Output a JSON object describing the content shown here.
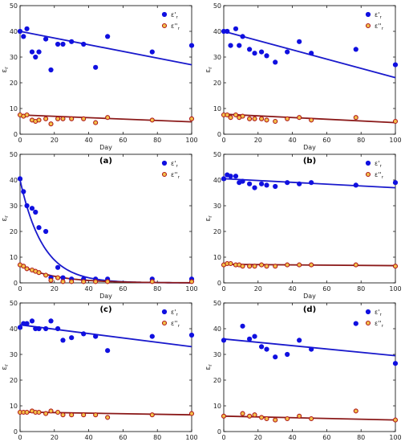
{
  "figure": {
    "panel_labels": [
      "(a)",
      "(b)",
      "(c)",
      "(d)",
      "(e)",
      "(f)"
    ],
    "colors": {
      "eps_prime_series": "#1010e0",
      "eps_double_series": "#b01818",
      "eps_double_fill": "#f2c24a",
      "eps_double_fit": "#8b1a1a",
      "eps_prime_fit": "#1a1acc"
    }
  },
  "chart_data": [
    {
      "type": "scatter",
      "panel": "(a)",
      "xlabel": "Day",
      "ylabel": "ε r",
      "xlim": [
        0,
        100
      ],
      "ylim": [
        0,
        50
      ],
      "xticks": [
        0,
        20,
        40,
        60,
        80,
        100
      ],
      "yticks": [
        0,
        10,
        20,
        30,
        40,
        50
      ],
      "legend": {
        "placement": "top-right",
        "entries": [
          "ε'r",
          "ε''r"
        ]
      },
      "series": [
        {
          "x": [
            0,
            2,
            4,
            7,
            9,
            11,
            15,
            18,
            22,
            25,
            30,
            37,
            44,
            51,
            77,
            100
          ],
          "y": [
            40,
            38,
            41,
            32,
            30,
            32,
            37,
            25,
            35,
            35,
            36,
            35,
            26,
            38,
            32,
            34.5
          ]
        },
        {
          "x": [
            0,
            2,
            4,
            7,
            9,
            11,
            15,
            18,
            22,
            25,
            30,
            37,
            44,
            51,
            77,
            100
          ],
          "y": [
            7.5,
            7,
            7.5,
            5.5,
            5,
            5.5,
            6,
            4,
            6,
            6,
            6,
            6,
            4.5,
            6.5,
            5.5,
            6
          ]
        }
      ],
      "fits": [
        {
          "type": "linear",
          "x": [
            0,
            100
          ],
          "y": [
            40,
            27
          ]
        },
        {
          "type": "linear",
          "x": [
            0,
            100
          ],
          "y": [
            7.5,
            4.8
          ]
        }
      ]
    },
    {
      "type": "scatter",
      "panel": "(b)",
      "xlabel": "Day",
      "ylabel": "ε r",
      "xlim": [
        0,
        100
      ],
      "ylim": [
        0,
        50
      ],
      "xticks": [
        0,
        20,
        40,
        60,
        80,
        100
      ],
      "yticks": [
        0,
        10,
        20,
        30,
        40,
        50
      ],
      "legend": {
        "placement": "top-right",
        "entries": [
          "ε'r",
          "ε''r"
        ]
      },
      "series": [
        {
          "x": [
            0,
            2,
            4,
            7,
            9,
            11,
            15,
            18,
            22,
            25,
            30,
            37,
            44,
            51,
            77,
            100
          ],
          "y": [
            40,
            40,
            34.5,
            41,
            34.5,
            38,
            33,
            31.5,
            32,
            30.5,
            28,
            32,
            36,
            31.5,
            33,
            27
          ]
        },
        {
          "x": [
            0,
            2,
            4,
            7,
            9,
            11,
            15,
            18,
            22,
            25,
            30,
            37,
            44,
            51,
            77,
            100
          ],
          "y": [
            7.5,
            7.5,
            6.5,
            7.5,
            6.5,
            7,
            6,
            6,
            6,
            5.5,
            5,
            6,
            6.5,
            5.5,
            6.5,
            5
          ]
        }
      ],
      "fits": [
        {
          "type": "linear",
          "x": [
            0,
            100
          ],
          "y": [
            40,
            22
          ]
        },
        {
          "type": "linear",
          "x": [
            0,
            100
          ],
          "y": [
            7.8,
            4.5
          ]
        }
      ]
    },
    {
      "type": "scatter",
      "panel": "(c)",
      "xlabel": "Day",
      "ylabel": "ε r",
      "xlim": [
        0,
        100
      ],
      "ylim": [
        0,
        50
      ],
      "xticks": [
        0,
        20,
        40,
        60,
        80,
        100
      ],
      "yticks": [
        0,
        10,
        20,
        30,
        40,
        50
      ],
      "legend": {
        "placement": "top-right",
        "entries": [
          "ε'r",
          "ε''r"
        ]
      },
      "series": [
        {
          "x": [
            0,
            2,
            4,
            7,
            9,
            11,
            15,
            18,
            22,
            25,
            30,
            37,
            44,
            51,
            77,
            100
          ],
          "y": [
            40.5,
            35.5,
            30,
            29,
            27.5,
            21.5,
            20,
            2,
            6,
            2,
            1.5,
            1.5,
            1.5,
            1.5,
            1.5,
            1.5
          ]
        },
        {
          "x": [
            0,
            2,
            4,
            7,
            9,
            11,
            15,
            18,
            22,
            25,
            30,
            37,
            44,
            51,
            77,
            100
          ],
          "y": [
            7,
            6.5,
            5.5,
            5,
            4.5,
            4,
            3,
            1,
            2,
            0.5,
            0.5,
            0.5,
            0.5,
            0.5,
            0.5,
            0.5
          ]
        }
      ],
      "fits": [
        {
          "type": "exponential",
          "a": 40,
          "k": 0.075
        },
        {
          "type": "exponential",
          "a": 7,
          "k": 0.05
        }
      ]
    },
    {
      "type": "scatter",
      "panel": "(d)",
      "xlabel": "Day",
      "ylabel": "ε r",
      "xlim": [
        0,
        100
      ],
      "ylim": [
        0,
        50
      ],
      "xticks": [
        0,
        20,
        40,
        60,
        80,
        100
      ],
      "yticks": [
        0,
        10,
        20,
        30,
        40,
        50
      ],
      "legend": {
        "placement": "top-right",
        "entries": [
          "ε'r",
          "ε''r"
        ]
      },
      "series": [
        {
          "x": [
            0,
            2,
            4,
            7,
            9,
            11,
            15,
            18,
            22,
            25,
            30,
            37,
            44,
            51,
            77,
            100
          ],
          "y": [
            40.5,
            42,
            41.5,
            41.5,
            39,
            39.5,
            38.5,
            37,
            38.5,
            38,
            37.5,
            39,
            38.5,
            39,
            38,
            39
          ]
        },
        {
          "x": [
            0,
            2,
            4,
            7,
            9,
            11,
            15,
            18,
            22,
            25,
            30,
            37,
            44,
            51,
            77,
            100
          ],
          "y": [
            7,
            7.5,
            7.5,
            7,
            7,
            6.5,
            6.5,
            6.5,
            7,
            6.5,
            6.5,
            7,
            7,
            7,
            7,
            6.5
          ]
        }
      ],
      "fits": [
        {
          "type": "linear",
          "x": [
            0,
            100
          ],
          "y": [
            40.5,
            37
          ]
        },
        {
          "type": "linear",
          "x": [
            0,
            100
          ],
          "y": [
            7.2,
            6.7
          ]
        }
      ]
    },
    {
      "type": "scatter",
      "panel": "(e)",
      "xlabel": "Day",
      "ylabel": "ε r",
      "xlim": [
        0,
        100
      ],
      "ylim": [
        0,
        50
      ],
      "xticks": [
        0,
        20,
        40,
        60,
        80,
        100
      ],
      "yticks": [
        0,
        10,
        20,
        30,
        40,
        50
      ],
      "legend": {
        "placement": "top-right",
        "entries": [
          "ε'r",
          "ε''r"
        ]
      },
      "series": [
        {
          "x": [
            0,
            2,
            4,
            7,
            9,
            11,
            15,
            18,
            22,
            25,
            30,
            37,
            44,
            51,
            77,
            100
          ],
          "y": [
            40.5,
            42,
            42,
            43,
            40,
            40,
            40,
            43,
            40,
            35.5,
            36.5,
            38,
            37,
            31.5,
            37,
            37.5
          ]
        },
        {
          "x": [
            0,
            2,
            4,
            7,
            9,
            11,
            15,
            18,
            22,
            25,
            30,
            37,
            44,
            51,
            77,
            100
          ],
          "y": [
            7.5,
            7.5,
            7.5,
            8,
            7.5,
            7.5,
            7,
            8,
            7.5,
            6.5,
            6.5,
            6.5,
            6.5,
            5.5,
            6.5,
            7
          ]
        }
      ],
      "fits": [
        {
          "type": "linear",
          "x": [
            0,
            100
          ],
          "y": [
            41.5,
            33
          ]
        },
        {
          "type": "linear",
          "x": [
            0,
            100
          ],
          "y": [
            7.6,
            6.5
          ]
        }
      ]
    },
    {
      "type": "scatter",
      "panel": "(f)",
      "xlabel": "Day",
      "ylabel": "ε r",
      "xlim": [
        0,
        100
      ],
      "ylim": [
        0,
        50
      ],
      "xticks": [
        0,
        20,
        40,
        60,
        80,
        100
      ],
      "yticks": [
        0,
        10,
        20,
        30,
        40,
        50
      ],
      "legend": {
        "placement": "top-right",
        "entries": [
          "ε'r",
          "ε''r"
        ]
      },
      "series": [
        {
          "x": [
            0,
            11,
            15,
            18,
            22,
            25,
            30,
            37,
            44,
            51,
            77,
            100
          ],
          "y": [
            35.5,
            41,
            36,
            37,
            33,
            32,
            29,
            30,
            35.5,
            32,
            42,
            26.5
          ]
        },
        {
          "x": [
            0,
            11,
            15,
            18,
            22,
            25,
            30,
            37,
            44,
            51,
            77,
            100
          ],
          "y": [
            6,
            7,
            6,
            6.5,
            5.5,
            5,
            4.5,
            5,
            6,
            5,
            8,
            4.5
          ]
        }
      ],
      "fits": [
        {
          "type": "linear",
          "x": [
            0,
            100
          ],
          "y": [
            36,
            29.5
          ]
        },
        {
          "type": "linear",
          "x": [
            0,
            100
          ],
          "y": [
            6,
            4.5
          ]
        }
      ]
    }
  ]
}
